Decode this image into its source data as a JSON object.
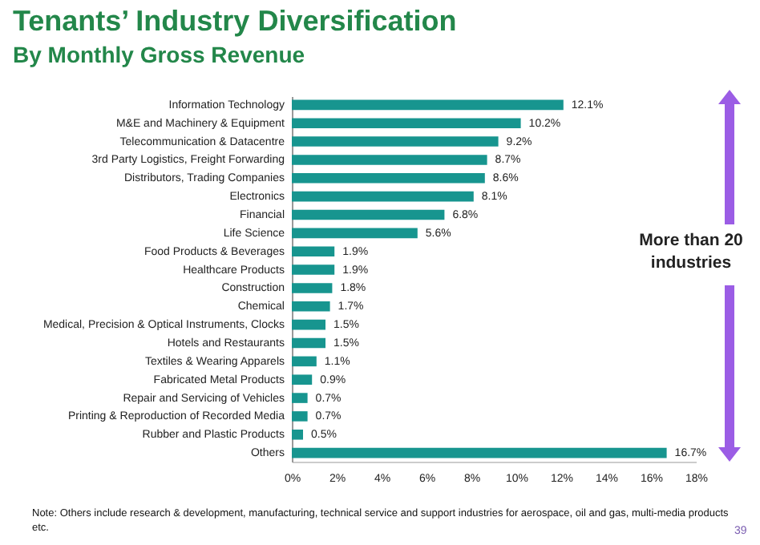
{
  "chart_data": {
    "type": "bar",
    "orientation": "horizontal",
    "title": "Tenants’ Industry Diversification",
    "subtitle": "By Monthly Gross Revenue",
    "categories": [
      "Information Technology",
      "M&E and Machinery & Equipment",
      "Telecommunication & Datacentre",
      "3rd Party Logistics, Freight Forwarding",
      "Distributors, Trading Companies",
      "Electronics",
      "Financial",
      "Life Science",
      "Food Products & Beverages",
      "Healthcare Products",
      "Construction",
      "Chemical",
      "Medical, Precision & Optical Instruments, Clocks",
      "Hotels and Restaurants",
      "Textiles & Wearing Apparels",
      "Fabricated Metal Products",
      "Repair and Servicing of Vehicles",
      "Printing & Reproduction of Recorded Media",
      "Rubber and Plastic Products",
      "Others"
    ],
    "values": [
      12.1,
      10.2,
      9.2,
      8.7,
      8.6,
      8.1,
      6.8,
      5.6,
      1.9,
      1.9,
      1.8,
      1.7,
      1.5,
      1.5,
      1.1,
      0.9,
      0.7,
      0.7,
      0.5,
      16.7
    ],
    "value_labels": [
      "12.1%",
      "10.2%",
      "9.2%",
      "8.7%",
      "8.6%",
      "8.1%",
      "6.8%",
      "5.6%",
      "1.9%",
      "1.9%",
      "1.8%",
      "1.7%",
      "1.5%",
      "1.5%",
      "1.1%",
      "0.9%",
      "0.7%",
      "0.7%",
      "0.5%",
      "16.7%"
    ],
    "color": "#17958f",
    "xlim": [
      0,
      18
    ],
    "xticks": [
      {
        "value": 0,
        "label": "0%"
      },
      {
        "value": 2,
        "label": "2%"
      },
      {
        "value": 4,
        "label": "4%"
      },
      {
        "value": 6,
        "label": "6%"
      },
      {
        "value": 8,
        "label": "8%"
      },
      {
        "value": 10,
        "label": "10%"
      },
      {
        "value": 12,
        "label": "12%"
      },
      {
        "value": 14,
        "label": "14%"
      },
      {
        "value": 16,
        "label": "16%"
      },
      {
        "value": 18,
        "label": "18%"
      }
    ],
    "annotations": [
      "More than 20 industries",
      "Note:  Others include research & development, manufacturing, technical service and support industries for aerospace, oil and gas, multi-media products etc.",
      "39"
    ]
  }
}
